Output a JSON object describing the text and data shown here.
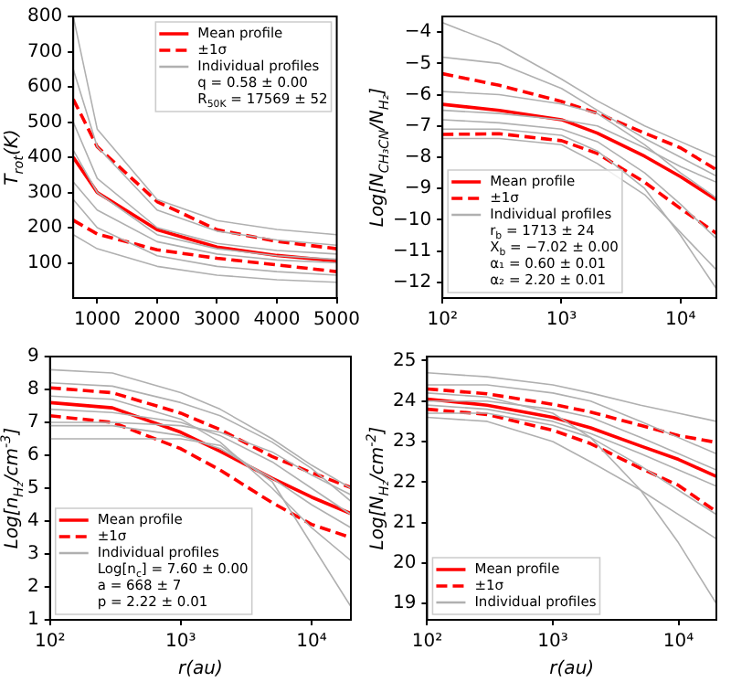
{
  "chart_data": [
    {
      "type": "line",
      "ylabel": "T$_{rot}$(K)",
      "legend": "top right",
      "marker": "none",
      "grid": false,
      "x": [
        600,
        1000,
        2000,
        3000,
        4000,
        5000
      ],
      "xlim": [
        600,
        5000
      ],
      "xticks": [
        1000,
        2000,
        3000,
        4000,
        5000
      ],
      "ylim": [
        0,
        800
      ],
      "yticks": [
        100,
        200,
        300,
        400,
        500,
        600,
        700,
        800
      ],
      "annotations": [
        "q = 0.58 ± 0.00",
        "R$_{50K}$ = 17569 ± 52"
      ],
      "series": [
        {
          "name": "Mean profile",
          "color": "#ff0000",
          "values": [
            400,
            300,
            194,
            145,
            121,
            105
          ]
        },
        {
          "name": "±1σ",
          "color": "#ff0000",
          "line_style": "dashed",
          "values": [
            565,
            430,
            274,
            194,
            161,
            140
          ]
        },
        {
          "color": "#ff0000",
          "line_style": "dashed",
          "values": [
            221,
            182,
            137,
            113,
            94,
            75
          ]
        },
        {
          "name": "Individual profiles",
          "color": "#b0b0b0",
          "values": [
            800,
            480,
            280,
            220,
            195,
            180
          ]
        },
        {
          "color": "#b0b0b0",
          "values": [
            650,
            430,
            250,
            190,
            165,
            150
          ]
        },
        {
          "color": "#b0b0b0",
          "values": [
            500,
            340,
            200,
            155,
            135,
            125
          ]
        },
        {
          "color": "#b0b0b0",
          "values": [
            330,
            250,
            160,
            125,
            108,
            100
          ]
        },
        {
          "color": "#b0b0b0",
          "values": [
            280,
            200,
            120,
            90,
            75,
            65
          ]
        },
        {
          "color": "#b0b0b0",
          "values": [
            180,
            140,
            90,
            65,
            52,
            45
          ]
        },
        {
          "color": "#b0b0b0",
          "values": [
            420,
            300,
            180,
            140,
            120,
            110
          ]
        }
      ]
    },
    {
      "type": "line",
      "ylabel": "Log[N$_{CH₃CN}$/N$_{H₂}$]",
      "legend": "bottom left",
      "marker": "none",
      "grid": false,
      "log": "x",
      "x": [
        100,
        300,
        1000,
        2000,
        5000,
        10000,
        20000
      ],
      "xlim": [
        100,
        20000
      ],
      "xticks": [
        {
          "value": 100,
          "label": "10²"
        },
        {
          "value": 1000,
          "label": "10³"
        },
        {
          "value": 10000,
          "label": "10⁴"
        }
      ],
      "ylim": [
        -12.5,
        -3.5
      ],
      "yticks": [
        -12,
        -11,
        -10,
        -9,
        -8,
        -7,
        -6,
        -5,
        -4
      ],
      "annotations": [
        "r$_{b}$ = 1713 ± 24",
        "X$_{b}$ = −7.02 ± 0.00",
        "α₁ = 0.60 ± 0.01",
        "α₂ = 2.20 ± 0.01"
      ],
      "series": [
        {
          "name": "Mean profile",
          "color": "#ff0000",
          "values": [
            -6.31,
            -6.5,
            -6.8,
            -7.23,
            -7.97,
            -8.62,
            -9.36
          ]
        },
        {
          "name": "±1σ",
          "color": "#ff0000",
          "line_style": "dashed",
          "values": [
            -5.33,
            -5.7,
            -6.22,
            -6.59,
            -7.23,
            -7.7,
            -8.4
          ]
        },
        {
          "color": "#ff0000",
          "line_style": "dashed",
          "values": [
            -7.27,
            -7.25,
            -7.47,
            -7.88,
            -8.8,
            -9.64,
            -10.43
          ]
        },
        {
          "name": "Individual profiles",
          "color": "#b0b0b0",
          "values": [
            -3.7,
            -4.4,
            -5.5,
            -6.2,
            -7.0,
            -7.5,
            -8.0
          ]
        },
        {
          "color": "#b0b0b0",
          "values": [
            -4.8,
            -5.0,
            -5.8,
            -6.5,
            -7.4,
            -8.0,
            -8.6
          ]
        },
        {
          "color": "#b0b0b0",
          "values": [
            -5.9,
            -6.0,
            -6.3,
            -6.6,
            -7.6,
            -8.5,
            -9.3
          ]
        },
        {
          "color": "#b0b0b0",
          "values": [
            -6.8,
            -6.9,
            -7.1,
            -7.5,
            -8.5,
            -9.5,
            -10.6
          ]
        },
        {
          "color": "#b0b0b0",
          "values": [
            -7.4,
            -7.4,
            -7.6,
            -8.2,
            -9.2,
            -10.4,
            -11.6
          ]
        },
        {
          "color": "#b0b0b0",
          "values": [
            -6.5,
            -6.6,
            -6.8,
            -7.0,
            -7.7,
            -8.3,
            -8.8
          ]
        },
        {
          "color": "#b0b0b0",
          "values": [
            -7.1,
            -7.1,
            -7.3,
            -7.8,
            -9.0,
            -10.5,
            -12.2
          ]
        }
      ]
    },
    {
      "type": "line",
      "ylabel": "Log[n$_{H₂}$/cm$^{-3}$]",
      "xlabel": "r(au)",
      "legend": "bottom left",
      "marker": "none",
      "grid": false,
      "log": "x",
      "x": [
        100,
        300,
        1000,
        2000,
        5000,
        10000,
        20000
      ],
      "xlim": [
        100,
        20000
      ],
      "xticks": [
        {
          "value": 100,
          "label": "10²"
        },
        {
          "value": 1000,
          "label": "10³"
        },
        {
          "value": 10000,
          "label": "10⁴"
        }
      ],
      "ylim": [
        1,
        9
      ],
      "yticks": [
        1,
        2,
        3,
        4,
        5,
        6,
        7,
        8,
        9
      ],
      "annotations": [
        "Log[n$_{c}$] = 7.60 ± 0.00",
        "a = 668 ± 7",
        "p = 2.22 ± 0.01"
      ],
      "series": [
        {
          "name": "Mean profile",
          "color": "#ff0000",
          "values": [
            7.6,
            7.44,
            6.7,
            6.12,
            5.3,
            4.73,
            4.23
          ]
        },
        {
          "name": "±1σ",
          "color": "#ff0000",
          "line_style": "dashed",
          "values": [
            8.05,
            7.9,
            7.28,
            6.78,
            5.96,
            5.47,
            5.02
          ]
        },
        {
          "color": "#ff0000",
          "line_style": "dashed",
          "values": [
            7.2,
            7.0,
            6.2,
            5.55,
            4.56,
            3.9,
            3.5
          ]
        },
        {
          "name": "Individual profiles",
          "color": "#b0b0b0",
          "values": [
            8.6,
            8.5,
            7.9,
            7.4,
            6.5,
            5.7,
            5.0
          ]
        },
        {
          "color": "#b0b0b0",
          "values": [
            8.2,
            8.1,
            7.6,
            7.2,
            6.4,
            5.6,
            4.6
          ]
        },
        {
          "color": "#b0b0b0",
          "values": [
            7.4,
            7.3,
            7.0,
            6.6,
            5.8,
            5.0,
            4.2
          ]
        },
        {
          "color": "#b0b0b0",
          "values": [
            6.9,
            6.9,
            6.6,
            6.2,
            5.3,
            4.5,
            3.8
          ]
        },
        {
          "color": "#b0b0b0",
          "values": [
            6.5,
            6.5,
            6.5,
            6.3,
            5.2,
            3.3,
            1.4
          ]
        },
        {
          "color": "#b0b0b0",
          "values": [
            7.8,
            7.7,
            7.1,
            6.4,
            5.0,
            3.8,
            2.8
          ]
        },
        {
          "color": "#b0b0b0",
          "values": [
            7.0,
            7.0,
            6.9,
            6.7,
            6.1,
            5.4,
            4.8
          ]
        }
      ]
    },
    {
      "type": "line",
      "ylabel": "Log[N$_{H₂}$/cm$^{-2}$]",
      "xlabel": "r(au)",
      "legend": "bottom left",
      "marker": "none",
      "grid": false,
      "log": "x",
      "x": [
        100,
        300,
        1000,
        2000,
        5000,
        10000,
        20000
      ],
      "xlim": [
        100,
        20000
      ],
      "xticks": [
        {
          "value": 100,
          "label": "10²"
        },
        {
          "value": 1000,
          "label": "10³"
        },
        {
          "value": 10000,
          "label": "10⁴"
        }
      ],
      "ylim": [
        18.6,
        25.1
      ],
      "yticks": [
        19,
        20,
        21,
        22,
        23,
        24,
        25
      ],
      "series": [
        {
          "name": "Mean profile",
          "color": "#ff0000",
          "values": [
            24.05,
            23.9,
            23.6,
            23.34,
            22.89,
            22.56,
            22.14
          ]
        },
        {
          "name": "±1σ",
          "color": "#ff0000",
          "line_style": "dashed",
          "values": [
            24.3,
            24.18,
            23.92,
            23.73,
            23.4,
            23.15,
            22.98
          ]
        },
        {
          "color": "#ff0000",
          "line_style": "dashed",
          "values": [
            23.8,
            23.67,
            23.28,
            22.95,
            22.34,
            21.92,
            21.27
          ]
        },
        {
          "name": "Individual profiles",
          "color": "#b0b0b0",
          "values": [
            24.7,
            24.6,
            24.4,
            24.2,
            23.9,
            23.7,
            23.5
          ]
        },
        {
          "color": "#b0b0b0",
          "values": [
            24.4,
            24.4,
            24.2,
            24.0,
            23.5,
            23.1,
            22.7
          ]
        },
        {
          "color": "#b0b0b0",
          "values": [
            23.9,
            23.8,
            23.5,
            23.2,
            22.7,
            22.3,
            21.9
          ]
        },
        {
          "color": "#b0b0b0",
          "values": [
            23.7,
            23.7,
            23.4,
            23.1,
            22.4,
            21.8,
            21.2
          ]
        },
        {
          "color": "#b0b0b0",
          "values": [
            24.2,
            24.1,
            23.7,
            23.1,
            21.8,
            20.5,
            19.0
          ]
        },
        {
          "color": "#b0b0b0",
          "values": [
            23.6,
            23.5,
            23.0,
            22.5,
            21.8,
            21.2,
            20.6
          ]
        },
        {
          "color": "#b0b0b0",
          "values": [
            24.0,
            24.0,
            23.8,
            23.6,
            23.1,
            22.7,
            22.3
          ]
        }
      ]
    }
  ]
}
